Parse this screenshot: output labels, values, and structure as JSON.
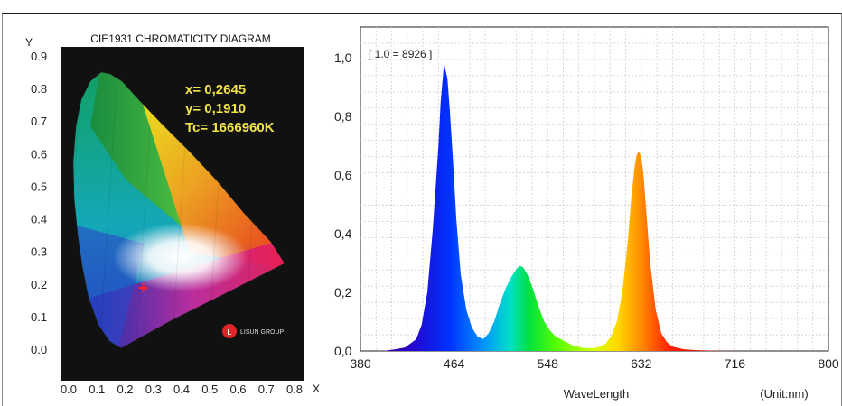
{
  "chart_data": [
    {
      "type": "scatter",
      "title": "CIE1931 CHROMATICITY DIAGRAM",
      "xlabel": "X",
      "ylabel": "Y",
      "xlim": [
        0.0,
        0.8
      ],
      "ylim": [
        0.0,
        0.9
      ],
      "x_ticks": [
        "0.0",
        "0.1",
        "0.2",
        "0.3",
        "0.4",
        "0.5",
        "0.6",
        "0.7",
        "0.8"
      ],
      "y_ticks": [
        "0.0",
        "0.1",
        "0.2",
        "0.3",
        "0.4",
        "0.5",
        "0.6",
        "0.7",
        "0.8",
        "0.9"
      ],
      "point": {
        "x": 0.2645,
        "y": 0.191
      },
      "readout": [
        "x= 0,2645",
        "y= 0,1910",
        "Tc= 1666960K"
      ],
      "logo_text": "LISUN GROUP",
      "background": "#111111",
      "readout_color": "#f2e34a",
      "marker_color": "#ff2020"
    },
    {
      "type": "area",
      "annotation": "[ 1.0 = 8926 ]",
      "xlabel": "WaveLength",
      "unit_label": "(Unit:nm)",
      "xlim": [
        380,
        800
      ],
      "ylim": [
        0.0,
        1.0
      ],
      "x_ticks": [
        "380",
        "464",
        "548",
        "632",
        "716",
        "800"
      ],
      "y_ticks": [
        "0,0",
        "0,2",
        "0,4",
        "0,6",
        "0,8",
        "1,0"
      ],
      "peaks": [
        {
          "wavelength": 455,
          "value": 0.98
        },
        {
          "wavelength": 523,
          "value": 0.29
        },
        {
          "wavelength": 630,
          "value": 0.68
        }
      ],
      "x": [
        380,
        390,
        400,
        410,
        420,
        430,
        435,
        440,
        445,
        450,
        452,
        455,
        458,
        460,
        463,
        466,
        470,
        475,
        480,
        485,
        490,
        495,
        500,
        505,
        510,
        515,
        520,
        523,
        526,
        530,
        535,
        540,
        545,
        550,
        555,
        560,
        565,
        570,
        575,
        580,
        585,
        590,
        595,
        600,
        605,
        610,
        615,
        620,
        623,
        626,
        628,
        630,
        632,
        634,
        636,
        640,
        645,
        650,
        655,
        660,
        670,
        680,
        700,
        730,
        760,
        800
      ],
      "values": [
        0,
        0,
        0,
        0.005,
        0.012,
        0.04,
        0.09,
        0.2,
        0.42,
        0.7,
        0.85,
        0.98,
        0.93,
        0.83,
        0.65,
        0.45,
        0.26,
        0.14,
        0.08,
        0.05,
        0.04,
        0.06,
        0.1,
        0.16,
        0.21,
        0.25,
        0.28,
        0.29,
        0.285,
        0.26,
        0.21,
        0.15,
        0.1,
        0.07,
        0.05,
        0.04,
        0.03,
        0.02,
        0.015,
        0.01,
        0.01,
        0.01,
        0.015,
        0.025,
        0.05,
        0.1,
        0.2,
        0.38,
        0.52,
        0.63,
        0.67,
        0.68,
        0.66,
        0.6,
        0.5,
        0.3,
        0.14,
        0.06,
        0.03,
        0.015,
        0.006,
        0.003,
        0.001,
        0,
        0,
        0
      ]
    }
  ]
}
